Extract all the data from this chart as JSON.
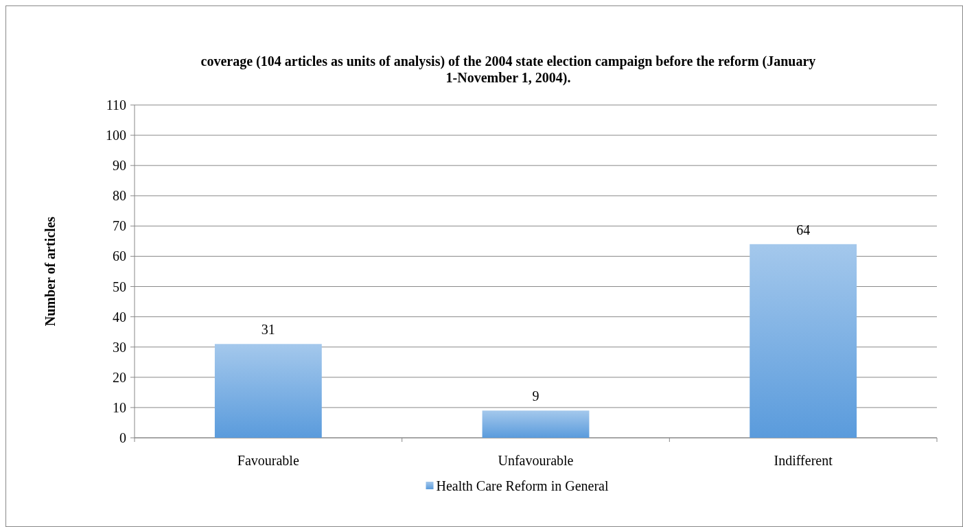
{
  "chart_data": {
    "type": "bar",
    "title": "coverage (104 articles as units of analysis) of the 2004 state election campaign before the reform (January 1-November 1, 2004).",
    "ylabel": "Number of articles",
    "categories": [
      "Favourable",
      "Unfavourable",
      "Indifferent"
    ],
    "series": [
      {
        "name": "Health Care Reform in General",
        "color": "#5a9bdc",
        "values": [
          31,
          9,
          64
        ]
      }
    ],
    "ylim": [
      0,
      110
    ],
    "yticks": [
      0,
      10,
      20,
      30,
      40,
      50,
      60,
      70,
      80,
      90,
      100,
      110
    ],
    "grid": "y",
    "legend": "bottom",
    "data_labels": true
  }
}
